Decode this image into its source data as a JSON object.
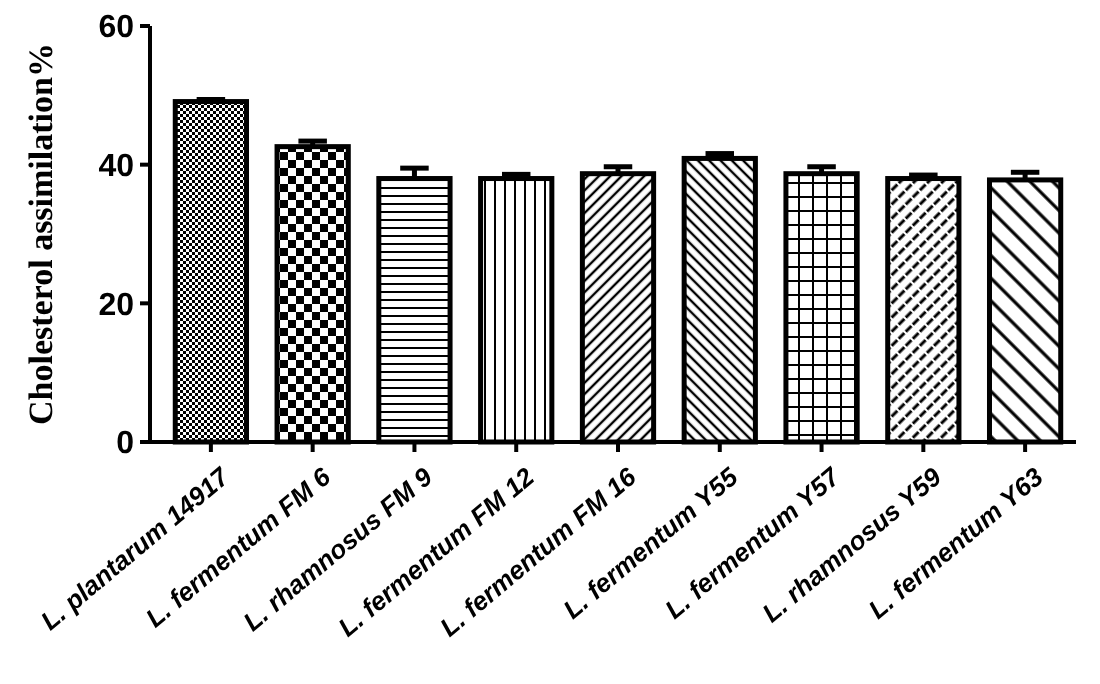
{
  "chart_data": {
    "type": "bar",
    "ylabel": "Cholesterol assimilation%",
    "categories": [
      "L. plantarum 14917",
      "L. fermentum FM 6",
      "L. rhamnosus FM 9",
      "L. fermentum FM 12",
      "L. fermentum FM 16",
      "L. fermentum Y55",
      "L. fermentum Y57",
      "L. rhamnosus Y59",
      "L. fermentum Y63"
    ],
    "values": [
      49.1,
      42.6,
      38.0,
      38.0,
      38.7,
      40.9,
      38.7,
      38.0,
      37.8
    ],
    "errors": [
      0.3,
      0.8,
      1.5,
      0.6,
      1.0,
      0.7,
      1.0,
      0.5,
      1.1
    ],
    "color": "#000000",
    "ylim": [
      0,
      60
    ],
    "yticks": [
      0,
      20,
      40,
      60
    ]
  }
}
